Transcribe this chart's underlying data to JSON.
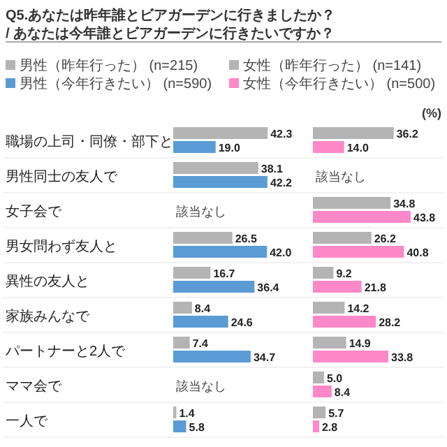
{
  "chart_data": [
    {
      "type": "bar",
      "orientation": "horizontal",
      "title": "Q5.あなたは昨年誰とビアガーデンに行きましたか？ / あなたは今年誰とビアガーデンに行きたいですか？",
      "legend": "top",
      "categories": [
        "職場の上司・同僚・部下と",
        "男性同士の友人で",
        "女子会で",
        "男女問わず友人と",
        "異性の友人と",
        "家族みんなで",
        "パートナーと2人で",
        "ママ会で",
        "一人で"
      ],
      "series": [
        {
          "name": "男性（昨年行った） (n=215)",
          "color": "#b4b4b4",
          "values": [
            42.3,
            38.1,
            null,
            26.5,
            16.7,
            8.4,
            7.4,
            null,
            1.4
          ],
          "value_labels": [
            "42.3",
            "38.1",
            "該当なし",
            "26.5",
            "16.7",
            "8.4",
            "7.4",
            "該当なし",
            "1.4"
          ]
        },
        {
          "name": "男性（今年行きたい） (n=590)",
          "color": "#5b9bd5",
          "values": [
            19.0,
            42.2,
            null,
            42.0,
            36.4,
            24.6,
            34.7,
            null,
            5.8
          ],
          "value_labels": [
            "19.0",
            "42.2",
            null,
            "42.0",
            "36.4",
            "24.6",
            "34.7",
            null,
            "5.8"
          ]
        }
      ]
    },
    {
      "type": "bar",
      "orientation": "horizontal",
      "legend": "top",
      "annotations": [
        "(%)"
      ],
      "categories": [
        null,
        null,
        null,
        null,
        null,
        null,
        null,
        null,
        null
      ],
      "series": [
        {
          "name": "女性（昨年行った） (n=141)",
          "color": "#b4b4b4",
          "values": [
            36.2,
            null,
            34.8,
            26.2,
            9.2,
            14.2,
            14.9,
            5.0,
            5.7
          ],
          "value_labels": [
            "36.2",
            "該当なし",
            "34.8",
            "26.2",
            "9.2",
            "14.2",
            "14.9",
            "5.0",
            "5.7"
          ]
        },
        {
          "name": "女性（今年行きたい） (n=500)",
          "color": "#ff88c8",
          "values": [
            14.0,
            null,
            43.8,
            40.8,
            21.8,
            28.2,
            33.8,
            8.4,
            2.8
          ],
          "value_labels": [
            "14.0",
            null,
            "43.8",
            "40.8",
            "21.8",
            "28.2",
            "33.8",
            "8.4",
            "2.8"
          ]
        }
      ]
    }
  ]
}
